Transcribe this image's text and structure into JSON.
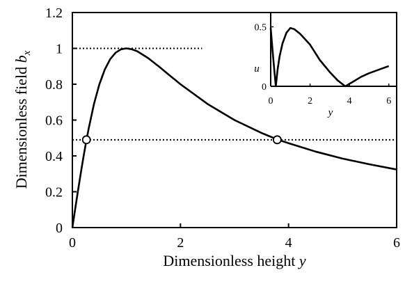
{
  "chart_data": [
    {
      "type": "line",
      "title": "",
      "xlabel_prefix": "Dimensionless height",
      "xlabel_var": "y",
      "ylabel_prefix": "Dimensionless field",
      "ylabel_var": "b",
      "ylabel_sub": "x",
      "xlim": [
        0,
        6
      ],
      "ylim": [
        0,
        1.2
      ],
      "xticks": [
        "0",
        "2",
        "4",
        "6"
      ],
      "yticks": [
        "0",
        "0.2",
        "0.4",
        "0.6",
        "0.8",
        "1",
        "1.2"
      ],
      "series": [
        {
          "x": [
            0,
            0.05,
            0.1,
            0.15,
            0.2,
            0.25,
            0.3,
            0.4,
            0.5,
            0.6,
            0.7,
            0.8,
            0.9,
            1.0,
            1.1,
            1.2,
            1.4,
            1.6,
            1.8,
            2.0,
            2.5,
            3.0,
            3.5,
            3.79,
            4.0,
            4.5,
            5.0,
            5.5,
            6.0
          ],
          "y": [
            0,
            0.0998,
            0.198,
            0.293,
            0.385,
            0.471,
            0.55,
            0.69,
            0.8,
            0.882,
            0.94,
            0.976,
            0.995,
            1.0,
            0.995,
            0.984,
            0.946,
            0.899,
            0.849,
            0.8,
            0.69,
            0.6,
            0.528,
            0.492,
            0.471,
            0.424,
            0.385,
            0.353,
            0.324
          ]
        }
      ],
      "reference_lines": [
        {
          "y": 1.0,
          "x_from": 0,
          "x_to": 2.4
        },
        {
          "y": 0.49,
          "x_from": 0,
          "x_to": 6
        }
      ],
      "markers": [
        {
          "x": 0.26,
          "y": 0.49
        },
        {
          "x": 3.79,
          "y": 0.49
        }
      ]
    },
    {
      "type": "line",
      "inset": true,
      "xlabel": "y",
      "ylabel": "u",
      "xlim": [
        0,
        6.4
      ],
      "ylim": [
        0,
        0.62
      ],
      "xticks": [
        "0",
        "2",
        "4",
        "6"
      ],
      "yticks": [
        "0",
        "0.5"
      ],
      "series": [
        {
          "x": [
            0,
            0.05,
            0.1,
            0.15,
            0.2,
            0.26,
            0.35,
            0.45,
            0.6,
            0.8,
            1.0,
            1.2,
            1.5,
            2.0,
            2.5,
            3.0,
            3.4,
            3.79,
            4.2,
            4.6,
            5.0,
            5.5,
            6.0
          ],
          "y": [
            0.49,
            0.39,
            0.29,
            0.197,
            0.105,
            0.0,
            0.14,
            0.25,
            0.36,
            0.45,
            0.49,
            0.48,
            0.44,
            0.35,
            0.22,
            0.12,
            0.05,
            0.0,
            0.04,
            0.08,
            0.11,
            0.14,
            0.17
          ]
        }
      ]
    }
  ]
}
